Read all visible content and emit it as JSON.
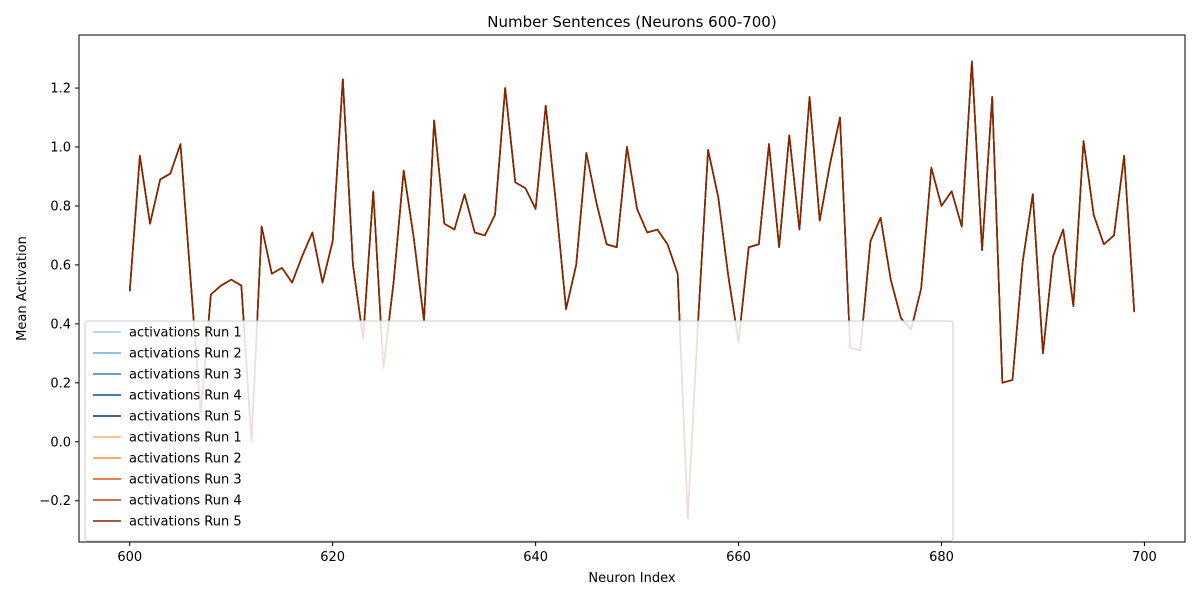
{
  "chart_data": {
    "type": "line",
    "title": "Number Sentences (Neurons 600-700)",
    "xlabel": "Neuron Index",
    "ylabel": "Mean Activation",
    "xlim": [
      595,
      704
    ],
    "ylim": [
      -0.34,
      1.38
    ],
    "xticks": [
      600,
      620,
      640,
      660,
      680,
      700
    ],
    "yticks": [
      -0.2,
      0.0,
      0.2,
      0.4,
      0.6,
      0.8,
      1.0,
      1.2
    ],
    "grid": false,
    "legend_position": "lower-left",
    "x": [
      600,
      601,
      602,
      603,
      604,
      605,
      606,
      607,
      608,
      609,
      610,
      611,
      612,
      613,
      614,
      615,
      616,
      617,
      618,
      619,
      620,
      621,
      622,
      623,
      624,
      625,
      626,
      627,
      628,
      629,
      630,
      631,
      632,
      633,
      634,
      635,
      636,
      637,
      638,
      639,
      640,
      641,
      642,
      643,
      644,
      645,
      646,
      647,
      648,
      649,
      650,
      651,
      652,
      653,
      654,
      655,
      656,
      657,
      658,
      659,
      660,
      661,
      662,
      663,
      664,
      665,
      666,
      667,
      668,
      669,
      670,
      671,
      672,
      673,
      674,
      675,
      676,
      677,
      678,
      679,
      680,
      681,
      682,
      683,
      684,
      685,
      686,
      687,
      688,
      689,
      690,
      691,
      692,
      693,
      694,
      695,
      696,
      697,
      698,
      699
    ],
    "values": [
      0.51,
      0.97,
      0.74,
      0.89,
      0.91,
      1.01,
      0.55,
      0.1,
      0.5,
      0.53,
      0.55,
      0.53,
      0.0,
      0.73,
      0.57,
      0.59,
      0.54,
      0.63,
      0.71,
      0.54,
      0.68,
      1.23,
      0.6,
      0.35,
      0.85,
      0.25,
      0.54,
      0.92,
      0.69,
      0.41,
      1.09,
      0.74,
      0.72,
      0.84,
      0.71,
      0.7,
      0.77,
      1.2,
      0.88,
      0.86,
      0.79,
      1.14,
      0.81,
      0.45,
      0.6,
      0.98,
      0.81,
      0.67,
      0.66,
      1.0,
      0.79,
      0.71,
      0.72,
      0.67,
      0.57,
      -0.26,
      0.4,
      0.99,
      0.83,
      0.56,
      0.34,
      0.66,
      0.67,
      1.01,
      0.66,
      1.04,
      0.72,
      1.17,
      0.75,
      0.94,
      1.1,
      0.32,
      0.31,
      0.68,
      0.76,
      0.55,
      0.42,
      0.38,
      0.52,
      0.93,
      0.8,
      0.85,
      0.73,
      1.29,
      0.65,
      1.17,
      0.2,
      0.21,
      0.61,
      0.84,
      0.3,
      0.63,
      0.72,
      0.46,
      1.02,
      0.77,
      0.67,
      0.7,
      0.97,
      0.44
    ],
    "series": [
      {
        "name": "activations Run 1",
        "color": "#9ecae1"
      },
      {
        "name": "activations Run 2",
        "color": "#6baed6"
      },
      {
        "name": "activations Run 3",
        "color": "#3182bd"
      },
      {
        "name": "activations Run 4",
        "color": "#08519c"
      },
      {
        "name": "activations Run 5",
        "color": "#08306b"
      },
      {
        "name": "activations Run 1",
        "color": "#fdae6b"
      },
      {
        "name": "activations Run 2",
        "color": "#fd8d3c"
      },
      {
        "name": "activations Run 3",
        "color": "#e6550d"
      },
      {
        "name": "activations Run 4",
        "color": "#c1440e"
      },
      {
        "name": "activations Run 5",
        "color": "#7f2704"
      }
    ]
  }
}
